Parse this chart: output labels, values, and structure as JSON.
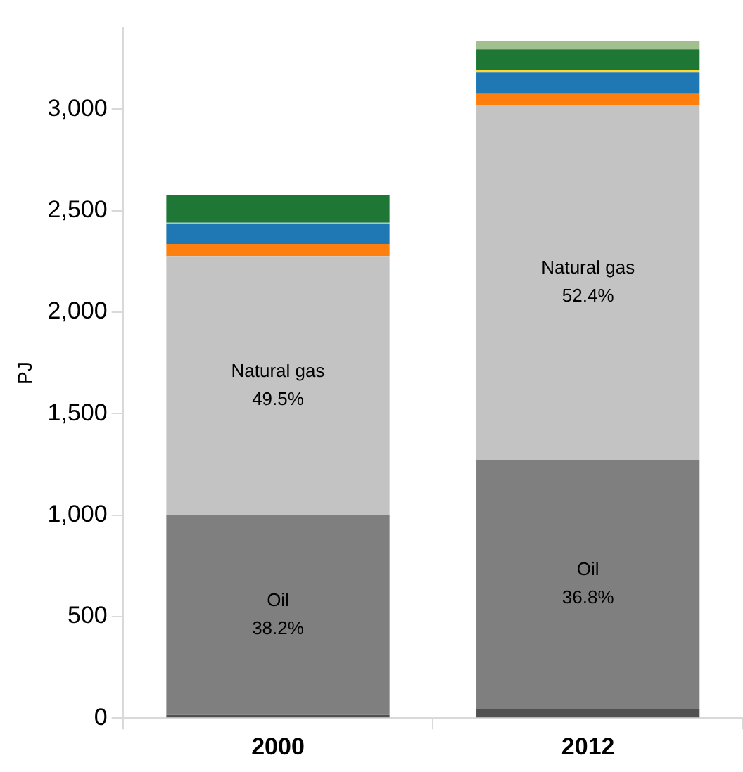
{
  "chart_data": {
    "type": "bar",
    "stacked": true,
    "ylabel": "PJ",
    "categories": [
      "2000",
      "2012"
    ],
    "series": [
      {
        "color": "#505050",
        "values": [
          15,
          45
        ]
      },
      {
        "color": "#7f7f7f",
        "values": [
          984,
          1227
        ],
        "value_labels": [
          "Oil\n38.2%",
          "Oil\n36.8%"
        ]
      },
      {
        "color": "#c3c3c3",
        "values": [
          1277,
          1747
        ],
        "value_labels": [
          "Natural gas\n49.5%",
          "Natural gas\n52.4%"
        ]
      },
      {
        "color": "#ff7f0e",
        "values": [
          60,
          60
        ]
      },
      {
        "color": "#1f77b4",
        "values": [
          100,
          102
        ]
      },
      {
        "color": "#9ecae1",
        "values": [
          5,
          null
        ]
      },
      {
        "color": "#ffd92f",
        "values": [
          null,
          12
        ]
      },
      {
        "color": "#1e7735",
        "values": [
          135,
          102
        ]
      },
      {
        "color": "#a1c08f",
        "values": [
          null,
          41
        ]
      }
    ],
    "ylim": [
      0,
      3400
    ],
    "yticks": [
      0,
      500,
      {
        "value": 1000,
        "label": "1,000"
      },
      {
        "value": 1500,
        "label": "1,500"
      },
      {
        "value": 2000,
        "label": "2,000"
      },
      {
        "value": 2500,
        "label": "2,500"
      },
      {
        "value": 3000,
        "label": "3,000"
      }
    ],
    "grid": false,
    "legend": false
  }
}
